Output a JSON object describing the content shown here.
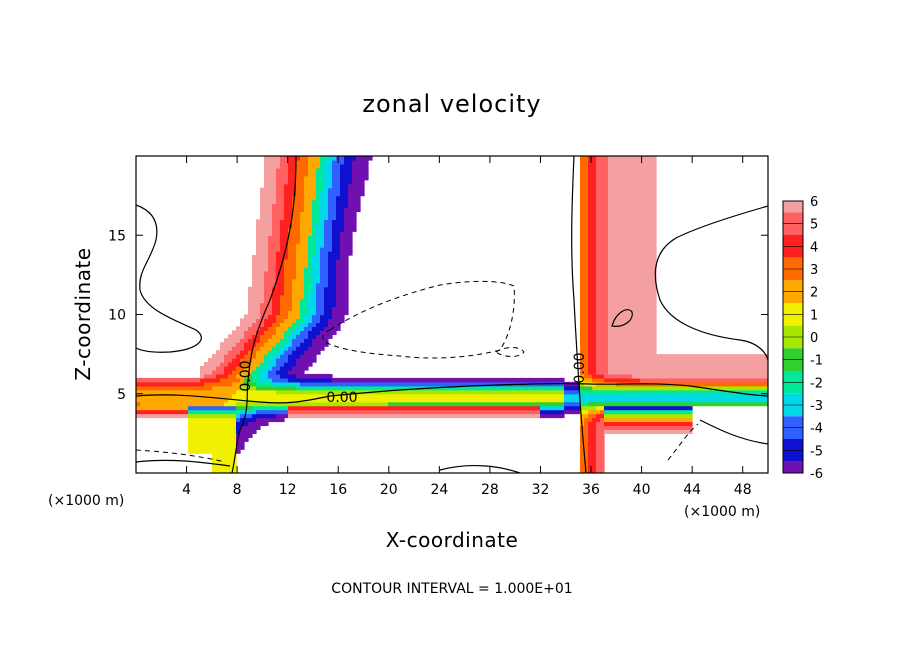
{
  "chart_data": {
    "type": "heatmap",
    "title": "zonal velocity",
    "xlabel": "X-coordinate",
    "ylabel": "Z-coordinate",
    "x_unit_label": "(×1000 m)",
    "x_unit_label_right": "(×1000 m)",
    "xlim": [
      0,
      50
    ],
    "ylim": [
      0,
      20
    ],
    "xticks": [
      4,
      8,
      12,
      16,
      20,
      24,
      28,
      32,
      36,
      40,
      44,
      48
    ],
    "yticks": [
      5,
      10,
      15
    ],
    "colorbar": {
      "levels": [
        6,
        5,
        4,
        3,
        2,
        1,
        0,
        -1,
        -2,
        -3,
        -4,
        -5,
        -6
      ],
      "colors": [
        "#f4a0a0",
        "#ff6060",
        "#ff2020",
        "#ff6a00",
        "#ffa800",
        "#f0f000",
        "#a8e800",
        "#30d030",
        "#00e898",
        "#00d8e8",
        "#3060ff",
        "#1010d0",
        "#7010b0"
      ]
    },
    "contour_labels": [
      "0.00",
      "0.00",
      "0.00"
    ],
    "footer": "CONTOUR INTERVAL = 1.000E+01"
  }
}
